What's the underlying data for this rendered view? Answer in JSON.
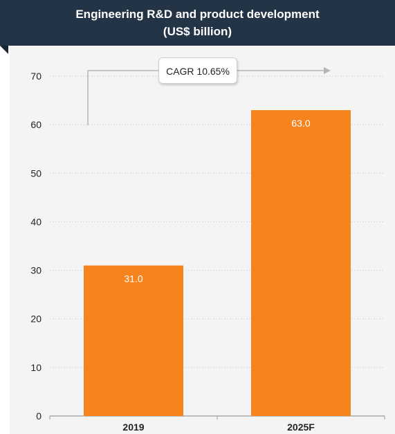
{
  "header": {
    "title_line1": "Engineering R&D and product development",
    "title_line2": "(US$ billion)"
  },
  "annotation": {
    "cagr_label": "CAGR 10.65%"
  },
  "colors": {
    "header_bg": "#243447",
    "bar": "#f5841f",
    "panel_bg": "#f4f4f4",
    "grid": "#d8d8d8"
  },
  "chart_data": {
    "type": "bar",
    "title": "Engineering R&D and product development (US$ billion)",
    "categories": [
      "2019",
      "2025F"
    ],
    "values": [
      31.0,
      63.0
    ],
    "value_labels": [
      "31.0",
      "63.0"
    ],
    "yticks": [
      0,
      10,
      20,
      30,
      40,
      50,
      60,
      70
    ],
    "ylim": [
      0,
      70
    ],
    "xlabel": "",
    "ylabel": "",
    "grid": true,
    "legend": "none"
  }
}
